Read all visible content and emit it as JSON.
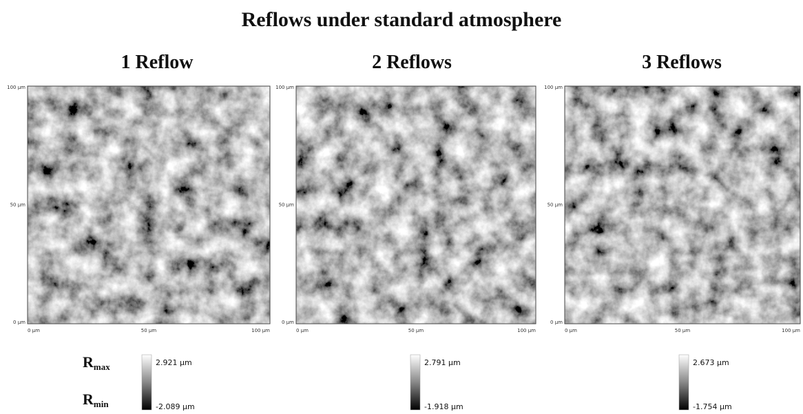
{
  "title": "Reflows under standard atmosphere",
  "legend": {
    "max": {
      "symbol": "R",
      "subscript": "max"
    },
    "min": {
      "symbol": "R",
      "subscript": "min"
    }
  },
  "panels": [
    {
      "title": "1 Reflow",
      "y_ticks": [
        "100 μm",
        "50 μm",
        "0 μm"
      ],
      "x_ticks": [
        "0 μm",
        "50 μm",
        "100 μm"
      ],
      "scale": {
        "max": "2.921 μm",
        "min": "-2.089 μm"
      }
    },
    {
      "title": "2 Reflows",
      "y_ticks": [
        "100 μm",
        "50 μm",
        "0 μm"
      ],
      "x_ticks": [
        "0 μm",
        "50 μm",
        "100 μm"
      ],
      "scale": {
        "max": "2.791 μm",
        "min": "-1.918 μm"
      }
    },
    {
      "title": "3 Reflows",
      "y_ticks": [
        "100 μm",
        "50 μm",
        "0 μm"
      ],
      "x_ticks": [
        "0 μm",
        "50 μm",
        "100 μm"
      ],
      "scale": {
        "max": "2.673 μm",
        "min": "-1.754 μm"
      }
    }
  ]
}
